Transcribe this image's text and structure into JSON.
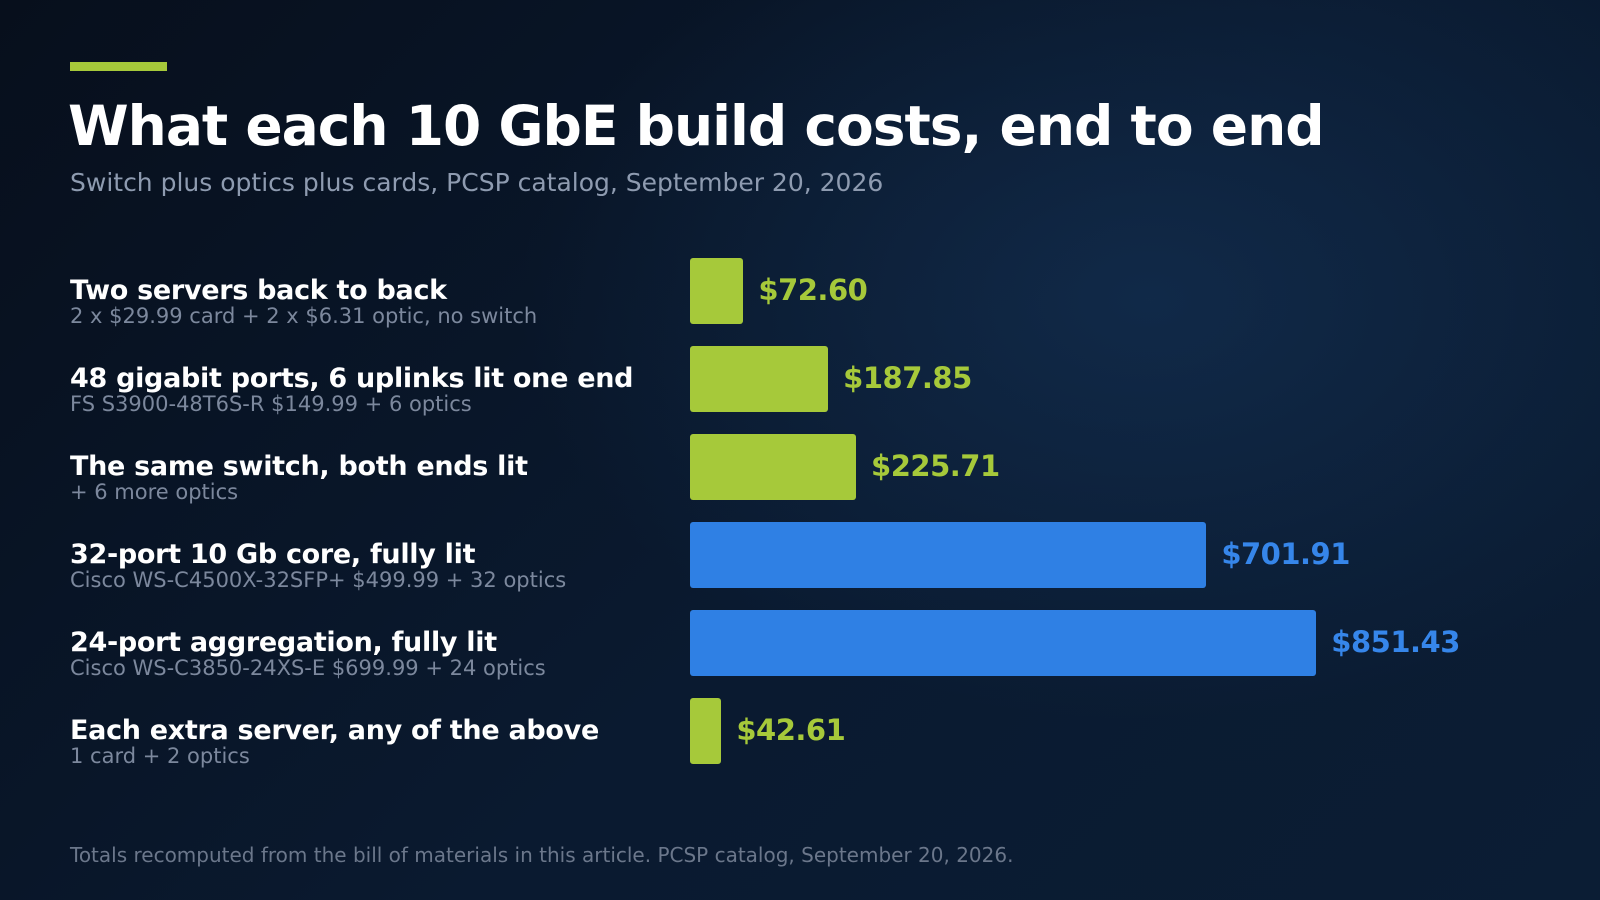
{
  "title": "What each 10 GbE build costs, end to end",
  "subtitle": "Switch plus optics plus cards, PCSP catalog, September 20, 2026",
  "footnote": "Totals recomputed from the bill of materials in this article. PCSP catalog, September 20, 2026.",
  "colors": {
    "accent": "#a6c93a",
    "bar_green": "#a6c93a",
    "bar_blue": "#2f80e4",
    "value_green": "#a6c93a",
    "value_blue": "#3686ea"
  },
  "chart_data": {
    "type": "bar",
    "orientation": "horizontal",
    "title": "What each 10 GbE build costs, end to end",
    "subtitle": "Switch plus optics plus cards, PCSP catalog, September 20, 2026",
    "xlabel": "",
    "ylabel": "",
    "xlim": [
      0,
      851.43
    ],
    "grid": false,
    "categories": [
      "Two servers back to back",
      "48 gigabit ports, 6 uplinks lit one end",
      "The same switch, both ends lit",
      "32-port 10 Gb core, fully lit",
      "24-port aggregation, fully lit",
      "Each extra server, any of the above"
    ],
    "descriptions": [
      "2 x $29.99 card + 2 x $6.31 optic, no switch",
      "FS S3900-48T6S-R $149.99 + 6 optics",
      "+ 6 more optics",
      "Cisco WS-C4500X-32SFP+ $499.99 + 32 optics",
      "Cisco WS-C3850-24XS-E $699.99 + 24 optics",
      "1 card + 2 optics"
    ],
    "values": [
      72.6,
      187.85,
      225.71,
      701.91,
      851.43,
      42.61
    ],
    "value_labels": [
      "$72.60",
      "$187.85",
      "$225.71",
      "$701.91",
      "$851.43",
      "$42.61"
    ],
    "bar_colors": [
      "green",
      "green",
      "green",
      "blue",
      "blue",
      "green"
    ]
  }
}
